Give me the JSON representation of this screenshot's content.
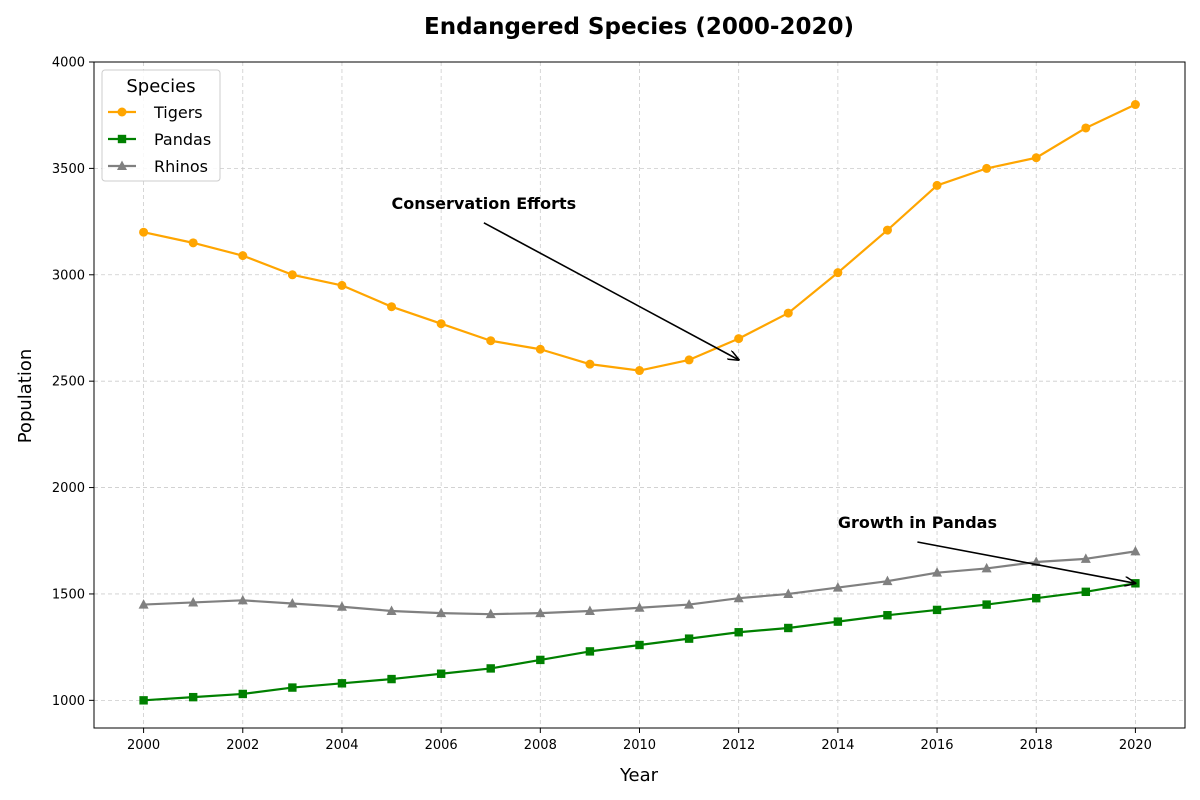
{
  "chart_data": {
    "type": "line",
    "title": "Endangered Species (2000-2020)",
    "xlabel": "Year",
    "ylabel": "Population",
    "x": [
      2000,
      2001,
      2002,
      2003,
      2004,
      2005,
      2006,
      2007,
      2008,
      2009,
      2010,
      2011,
      2012,
      2013,
      2014,
      2015,
      2016,
      2017,
      2018,
      2019,
      2020
    ],
    "xlim": [
      1999,
      2021
    ],
    "ylim": [
      870,
      4000
    ],
    "xticks": [
      2000,
      2002,
      2004,
      2006,
      2008,
      2010,
      2012,
      2014,
      2016,
      2018,
      2020
    ],
    "yticks": [
      1000,
      1500,
      2000,
      2500,
      3000,
      3500,
      4000
    ],
    "grid": true,
    "legend": {
      "title": "Species",
      "placement": "top-left"
    },
    "series": [
      {
        "name": "Tigers",
        "color": "#ffa500",
        "marker": "circle",
        "values": [
          3200,
          3150,
          3090,
          3000,
          2950,
          2850,
          2770,
          2690,
          2650,
          2580,
          2550,
          2600,
          2700,
          2820,
          3010,
          3210,
          3420,
          3500,
          3550,
          3690,
          3800
        ]
      },
      {
        "name": "Pandas",
        "color": "#008000",
        "marker": "square",
        "values": [
          1000,
          1015,
          1030,
          1060,
          1080,
          1100,
          1125,
          1150,
          1190,
          1230,
          1260,
          1290,
          1320,
          1340,
          1370,
          1400,
          1425,
          1450,
          1480,
          1510,
          1550
        ]
      },
      {
        "name": "Rhinos",
        "color": "#808080",
        "marker": "triangle",
        "values": [
          1450,
          1460,
          1470,
          1455,
          1440,
          1420,
          1410,
          1405,
          1410,
          1420,
          1435,
          1450,
          1480,
          1500,
          1530,
          1560,
          1600,
          1620,
          1650,
          1665,
          1700
        ]
      }
    ],
    "annotations": [
      {
        "text": "Conservation Efforts",
        "text_x": 2005,
        "text_y": 3310,
        "point_x": 2012,
        "point_y": 2600
      },
      {
        "text": "Growth in Pandas",
        "text_x": 2014,
        "text_y": 1810,
        "point_x": 2020,
        "point_y": 1550
      }
    ]
  }
}
